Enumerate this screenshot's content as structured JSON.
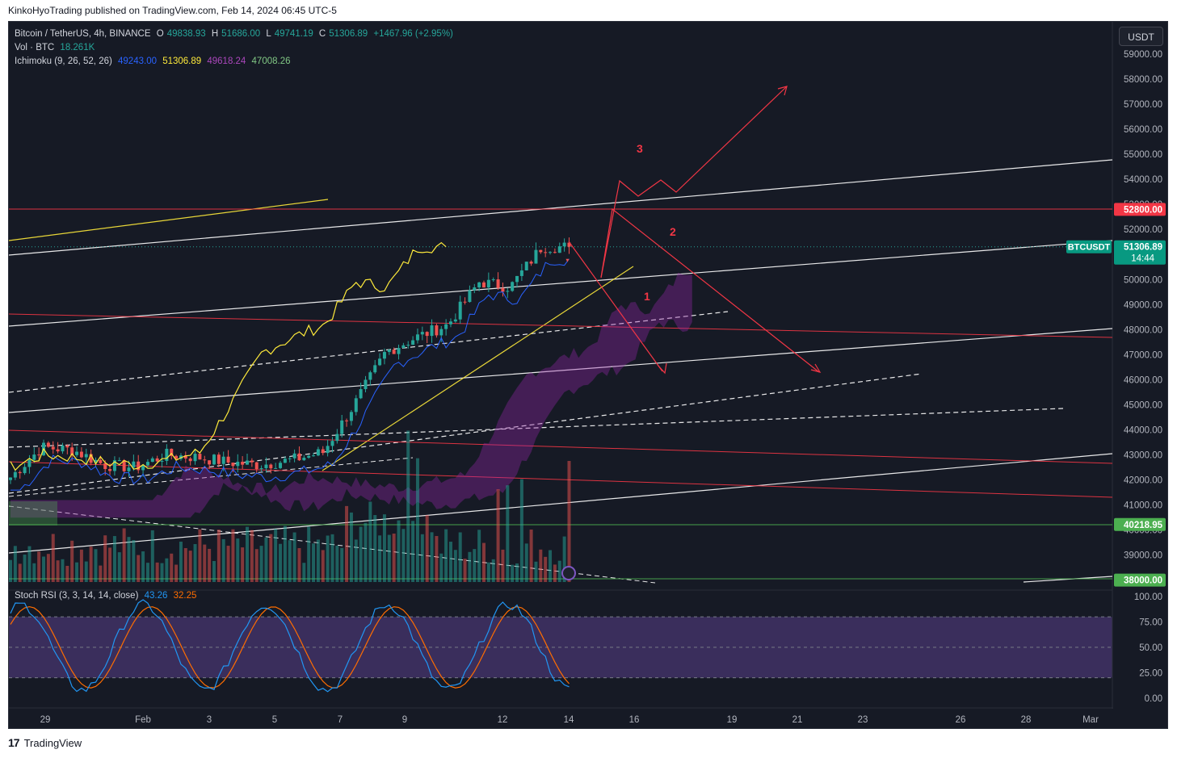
{
  "publish_line": "KinkoHyoTrading published on TradingView.com, Feb 14, 2024 06:45 UTC-5",
  "legend": {
    "symbol": "Bitcoin / TetherUS, 4h, BINANCE",
    "o_label": "O",
    "o": "49838.93",
    "h_label": "H",
    "h": "51686.00",
    "l_label": "L",
    "l": "49741.19",
    "c_label": "C",
    "c": "51306.89",
    "change": "+1467.96 (+2.95%)",
    "vol_label": "Vol · BTC",
    "vol": "18.261K",
    "ichimoku_label": "Ichimoku (9, 26, 52, 26)",
    "ichimoku_values": [
      "49243.00",
      "51306.89",
      "49618.24",
      "47008.26"
    ],
    "ichimoku_colors": [
      "#2962ff",
      "#ffeb3b",
      "#9c27b0",
      "#66bb6a"
    ],
    "stoch_label": "Stoch RSI (3, 3, 14, 14, close)",
    "stoch_k": "43.26",
    "stoch_d": "32.25"
  },
  "currency_button": "USDT",
  "price_axis": [
    "59000.00",
    "58000.00",
    "57000.00",
    "56000.00",
    "55000.00",
    "54000.00",
    "53000.00",
    "52000.00",
    "51000.00",
    "50000.00",
    "49000.00",
    "48000.00",
    "47000.00",
    "46000.00",
    "45000.00",
    "44000.00",
    "43000.00",
    "42000.00",
    "41000.00",
    "40000.00",
    "39000.00",
    "38000.00"
  ],
  "price_tags": [
    {
      "label": "52800.00",
      "value": 52800,
      "color": "#f23645"
    },
    {
      "label": "51306.89",
      "value": 51306.89,
      "color": "#089981",
      "extra": "14:44"
    },
    {
      "label": "40218.95",
      "value": 40218.95,
      "color": "#4caf50"
    },
    {
      "label": "38000.00",
      "value": 38000,
      "color": "#4caf50"
    }
  ],
  "symbol_tag": "BTCUSDT",
  "stoch_axis": [
    "100.00",
    "75.00",
    "50.00",
    "25.00",
    "0.00"
  ],
  "time_axis": [
    "29",
    "Feb",
    "3",
    "5",
    "7",
    "9",
    "12",
    "14",
    "16",
    "19",
    "21",
    "23",
    "26",
    "28",
    "Mar"
  ],
  "wave_labels": [
    "1",
    "2",
    "3"
  ],
  "footer_brand": "TradingView",
  "colors": {
    "up": "#26a69a",
    "down": "#ef5350",
    "bg": "#161a25",
    "projection": "#f23645"
  },
  "chart_data": {
    "type": "candlestick",
    "interval": "4h",
    "ylim": [
      37400,
      59700
    ],
    "last_close": 51306.89,
    "daily_closes": [
      {
        "date": "Jan 28",
        "close": 42100
      },
      {
        "date": "Jan 29",
        "close": 43300
      },
      {
        "date": "Jan 30",
        "close": 43200
      },
      {
        "date": "Jan 31",
        "close": 42600
      },
      {
        "date": "Feb 1",
        "close": 42500
      },
      {
        "date": "Feb 2",
        "close": 43000
      },
      {
        "date": "Feb 3",
        "close": 42900
      },
      {
        "date": "Feb 4",
        "close": 42700
      },
      {
        "date": "Feb 5",
        "close": 42600
      },
      {
        "date": "Feb 6",
        "close": 42800
      },
      {
        "date": "Feb 7",
        "close": 43100
      },
      {
        "date": "Feb 8",
        "close": 45000
      },
      {
        "date": "Feb 9",
        "close": 47100
      },
      {
        "date": "Feb 10",
        "close": 47700
      },
      {
        "date": "Feb 11",
        "close": 48200
      },
      {
        "date": "Feb 12",
        "close": 49900
      },
      {
        "date": "Feb 13",
        "close": 49700
      },
      {
        "date": "Feb 14",
        "close": 51306.89
      }
    ],
    "stoch_rsi_ylim": [
      0,
      100
    ],
    "stoch_rsi_bands": [
      20,
      50,
      80
    ]
  }
}
